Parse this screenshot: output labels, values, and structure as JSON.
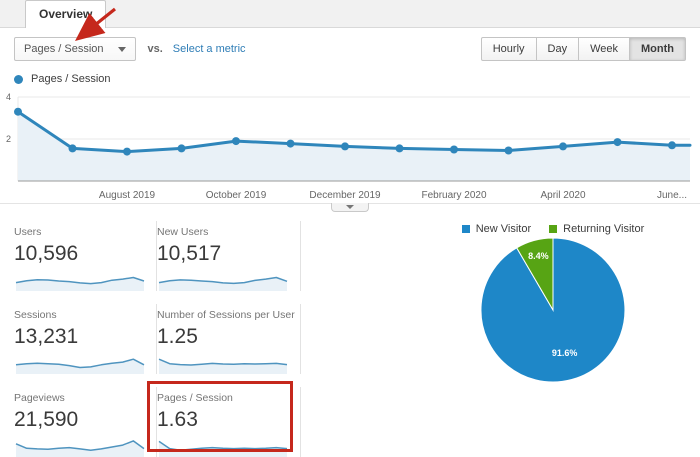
{
  "tabs": {
    "overview": "Overview"
  },
  "header": {
    "metric_selector_value": "Pages / Session",
    "vs_label": "vs.",
    "select_metric_link": "Select a metric",
    "granularity_options": [
      "Hourly",
      "Day",
      "Week",
      "Month"
    ],
    "granularity_selected": "Month"
  },
  "chart_data": [
    {
      "type": "line",
      "title": "Pages / Session",
      "legend": [
        "Pages / Session"
      ],
      "x": [
        "Jun 2019",
        "Jul 2019",
        "Aug 2019",
        "Sep 2019",
        "Oct 2019",
        "Nov 2019",
        "Dec 2019",
        "Jan 2020",
        "Feb 2020",
        "Mar 2020",
        "Apr 2020",
        "May 2020",
        "Jun 2020"
      ],
      "x_tick_labels": [
        "",
        "",
        "August 2019",
        "",
        "October 2019",
        "",
        "December 2019",
        "",
        "February 2020",
        "",
        "April 2020",
        "",
        "June..."
      ],
      "values": [
        3.3,
        1.55,
        1.4,
        1.55,
        1.9,
        1.78,
        1.65,
        1.55,
        1.5,
        1.45,
        1.65,
        1.85,
        1.7
      ],
      "ylim": [
        0,
        4
      ],
      "yticks": [
        2,
        4
      ],
      "grid": true,
      "legend_position": "top-left"
    },
    {
      "type": "pie",
      "legend_entries": [
        "New Visitor",
        "Returning Visitor"
      ],
      "slices": [
        {
          "label": "New Visitor",
          "value": 91.6,
          "display": "91.6%",
          "color": "#1e87c8"
        },
        {
          "label": "Returning Visitor",
          "value": 8.4,
          "display": "8.4%",
          "color": "#57a414"
        }
      ],
      "legend_position": "top"
    }
  ],
  "metrics": {
    "cards": [
      {
        "label": "Users",
        "value": "10,596",
        "spark": [
          0.4,
          0.52,
          0.58,
          0.56,
          0.5,
          0.46,
          0.38,
          0.34,
          0.4,
          0.55,
          0.62,
          0.72,
          0.5
        ]
      },
      {
        "label": "New Users",
        "value": "10,517",
        "spark": [
          0.4,
          0.52,
          0.57,
          0.55,
          0.5,
          0.46,
          0.38,
          0.35,
          0.4,
          0.54,
          0.62,
          0.72,
          0.48
        ]
      },
      {
        "label": "Sessions",
        "value": "13,231",
        "spark": [
          0.45,
          0.52,
          0.55,
          0.52,
          0.48,
          0.4,
          0.28,
          0.32,
          0.45,
          0.55,
          0.62,
          0.8,
          0.45
        ]
      },
      {
        "label": "Number of Sessions per User",
        "value": "1.25",
        "spark": [
          0.8,
          0.52,
          0.46,
          0.44,
          0.48,
          0.54,
          0.5,
          0.48,
          0.52,
          0.5,
          0.52,
          0.54,
          0.46
        ]
      },
      {
        "label": "Pageviews",
        "value": "21,590",
        "spark": [
          0.7,
          0.42,
          0.38,
          0.36,
          0.42,
          0.46,
          0.38,
          0.3,
          0.38,
          0.5,
          0.62,
          0.88,
          0.4
        ]
      },
      {
        "label": "Pages / Session",
        "value": "1.63",
        "highlighted": true,
        "spark": [
          0.85,
          0.4,
          0.3,
          0.36,
          0.42,
          0.46,
          0.42,
          0.4,
          0.42,
          0.4,
          0.42,
          0.46,
          0.4
        ]
      }
    ]
  },
  "annotations": {
    "arrow_target": "metric selector dropdown",
    "highlight_target": "Pages / Session card",
    "color": "#c5281c"
  },
  "colors": {
    "line_blue": "#2f86bb",
    "area_fill": "#e9f1f7",
    "spark_blue": "#4f94bf",
    "pie_blue": "#1e87c8",
    "pie_green": "#57a414",
    "link_blue": "#2e7db6",
    "annotation_red": "#c5281c"
  }
}
